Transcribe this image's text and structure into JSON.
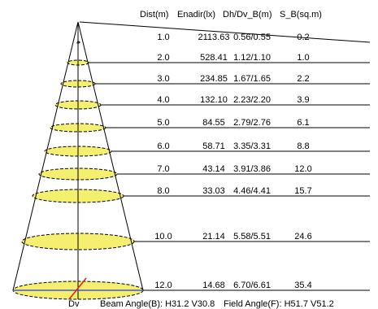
{
  "headers": {
    "dist": "Dist(m)",
    "enadir": "Enadir(lx)",
    "dh_dv": "Dh/Dv_B(m)",
    "s_b": "S_B(sq.m)"
  },
  "rows": [
    {
      "dist": "1.0",
      "enadir": "2113.63",
      "dh_dv": "0.56/0.55",
      "s_b": "0.2"
    },
    {
      "dist": "2.0",
      "enadir": "528.41",
      "dh_dv": "1.12/1.10",
      "s_b": "1.0"
    },
    {
      "dist": "3.0",
      "enadir": "234.85",
      "dh_dv": "1.67/1.65",
      "s_b": "2.2"
    },
    {
      "dist": "4.0",
      "enadir": "132.10",
      "dh_dv": "2.23/2.20",
      "s_b": "3.9"
    },
    {
      "dist": "5.0",
      "enadir": "84.55",
      "dh_dv": "2.79/2.76",
      "s_b": "6.1"
    },
    {
      "dist": "6.0",
      "enadir": "58.71",
      "dh_dv": "3.35/3.31",
      "s_b": "8.8"
    },
    {
      "dist": "7.0",
      "enadir": "43.14",
      "dh_dv": "3.91/3.86",
      "s_b": "12.0"
    },
    {
      "dist": "8.0",
      "enadir": "33.03",
      "dh_dv": "4.46/4.41",
      "s_b": "15.7"
    },
    {
      "dist": "10.0",
      "enadir": "21.14",
      "dh_dv": "5.58/5.51",
      "s_b": "24.6"
    },
    {
      "dist": "12.0",
      "enadir": "14.68",
      "dh_dv": "6.70/6.61",
      "s_b": "35.4"
    }
  ],
  "footer": {
    "dv_label": "Dv",
    "beam_angle": "Beam Angle(B): H31.2 V30.8",
    "field_angle": "Field Angle(F): H51.7 V51.2"
  },
  "colors": {
    "ellipse_fill": "#f5ef6f",
    "beam_marker": "#e0201a",
    "dv_line": "#4a57c8",
    "line": "#000000"
  }
}
